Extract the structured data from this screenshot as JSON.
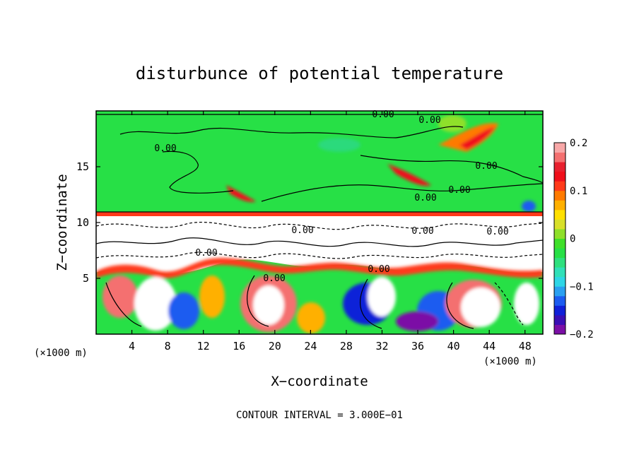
{
  "chart_data": {
    "type": "heatmap",
    "title": "disturbunce of potential temperature",
    "xlabel": "X−coordinate",
    "ylabel": "Z−coordinate",
    "x_unit_left": "(×1000 m)",
    "x_unit_right": "(×1000 m)",
    "xlim": [
      0,
      50
    ],
    "ylim": [
      0,
      20
    ],
    "x_ticks": [
      4,
      8,
      12,
      16,
      20,
      24,
      28,
      32,
      36,
      40,
      44,
      48
    ],
    "y_ticks": [
      5,
      10,
      15
    ],
    "colorbar": {
      "range": [
        -0.2,
        0.2
      ],
      "tick_values": [
        0.2,
        0.1,
        0,
        -0.1,
        -0.2
      ],
      "tick_labels": [
        "0.2",
        "0.1",
        "0",
        "−0.1",
        "−0.2"
      ],
      "colors": [
        "#7b0fa6",
        "#3a0fb4",
        "#1020d8",
        "#1c5cf0",
        "#2aa0f0",
        "#2ed6e6",
        "#30e0b8",
        "#2ee07e",
        "#27e046",
        "#3fe02a",
        "#8fe02a",
        "#d8e02a",
        "#ffe000",
        "#ffb000",
        "#ff7a00",
        "#ff3a1a",
        "#f00f1a",
        "#e8202e",
        "#f47070",
        "#f8a8a8"
      ]
    },
    "contour_labels": [
      "0.00",
      "0.00",
      "0.00",
      "0.00",
      "0.00",
      "0.00",
      "0.00",
      "0.00",
      "0.00",
      "0.00",
      "0.00",
      "0.00"
    ],
    "contour_interval_text": "CONTOUR INTERVAL = 3.000E−01"
  }
}
